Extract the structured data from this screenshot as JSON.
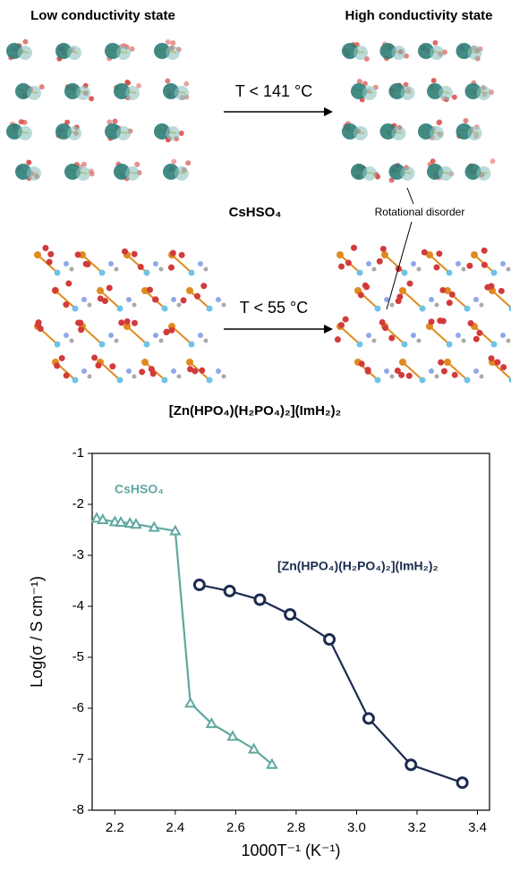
{
  "figure": {
    "low_state": "Low conductivity state",
    "high_state": "High conductivity state",
    "arrow_1": "T < 141 °C",
    "compound_1": "CsHSO₄",
    "annotation": "Rotational disorder",
    "arrow_2": "T < 55 °C",
    "compound_2": "[Zn(HPO₄)(H₂PO₄)₂](ImH₂)₂"
  },
  "chart_data": {
    "type": "line",
    "x_label": "1000T⁻¹ (K⁻¹)",
    "y_label": "Log(σ / S cm⁻¹)",
    "xlim": [
      2.125,
      3.44
    ],
    "ylim": [
      -8,
      -1
    ],
    "xticks": [
      2.2,
      2.4,
      2.6,
      2.8,
      {
        "value": 3,
        "label": "3.0"
      },
      3.2,
      3.4
    ],
    "yticks": [
      -1,
      -2,
      -3,
      -4,
      -5,
      -6,
      -7,
      -8
    ],
    "series": [
      {
        "name": "CsHSO₄",
        "color": "#5fa8a0",
        "marker": "triangle",
        "x": [
          2.14,
          2.16,
          2.2,
          2.22,
          2.25,
          2.27,
          2.33,
          2.4,
          2.45,
          2.52,
          2.59,
          2.66,
          2.72
        ],
        "values": [
          -2.27,
          -2.3,
          -2.34,
          -2.35,
          -2.37,
          -2.39,
          -2.45,
          -2.52,
          -5.9,
          -6.3,
          -6.55,
          -6.8,
          -7.1
        ]
      },
      {
        "name": "[Zn(HPO₄)(H₂PO₄)₂](ImH₂)₂",
        "color": "#1c2b4f",
        "marker": "circle",
        "x": [
          2.48,
          2.58,
          2.68,
          2.78,
          2.91,
          3.04,
          3.18,
          3.35
        ],
        "values": [
          -3.58,
          -3.7,
          -3.87,
          -4.16,
          -4.65,
          -6.2,
          -7.11,
          -7.46
        ]
      }
    ]
  }
}
